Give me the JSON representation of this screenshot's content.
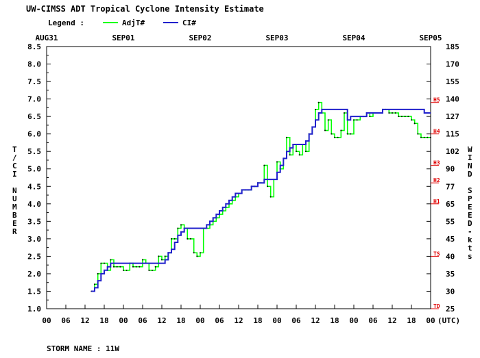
{
  "chart_data": {
    "type": "line",
    "title": "UW-CIMSS ADT Tropical Cyclone Intensity Estimate",
    "legend_label": "Legend :",
    "legend_position": "top-left",
    "series": [
      {
        "name": "AdjT#",
        "color": "#00ff00",
        "x": [
          14,
          15,
          16,
          17,
          18,
          19,
          20,
          21,
          22,
          23,
          24,
          25,
          26,
          27,
          28,
          29,
          30,
          31,
          32,
          33,
          34,
          35,
          36,
          37,
          38,
          39,
          40,
          41,
          42,
          43,
          44,
          45,
          46,
          47,
          48,
          49,
          50,
          51,
          52,
          53,
          54,
          55,
          56,
          57,
          58,
          59,
          60,
          61,
          62,
          63,
          64,
          65,
          66,
          67,
          68,
          69,
          70,
          71,
          72,
          73,
          74,
          75,
          76,
          77,
          78,
          79,
          80,
          81,
          82,
          83,
          84,
          85,
          86,
          87,
          88,
          89,
          90,
          91,
          92,
          93,
          94,
          95,
          96,
          97,
          98,
          99,
          100,
          101,
          102,
          103,
          104,
          105,
          106,
          107,
          108,
          109,
          110,
          111,
          112,
          113,
          114,
          115,
          116,
          117,
          118,
          119,
          120
        ],
        "values": [
          1.5,
          1.7,
          2.0,
          2.3,
          2.3,
          2.1,
          2.4,
          2.2,
          2.2,
          2.2,
          2.1,
          2.1,
          2.3,
          2.2,
          2.2,
          2.2,
          2.4,
          2.3,
          2.1,
          2.1,
          2.2,
          2.5,
          2.4,
          2.5,
          2.6,
          3.0,
          3.0,
          3.3,
          3.4,
          3.3,
          3.0,
          3.0,
          2.6,
          2.5,
          2.6,
          3.3,
          3.3,
          3.4,
          3.5,
          3.6,
          3.7,
          3.8,
          3.9,
          4.0,
          4.1,
          4.2,
          4.3,
          4.4,
          4.4,
          4.4,
          4.5,
          4.5,
          4.6,
          4.6,
          5.1,
          4.5,
          4.2,
          4.7,
          5.2,
          5.0,
          5.3,
          5.9,
          5.4,
          5.7,
          5.5,
          5.4,
          5.7,
          5.5,
          6.0,
          6.2,
          6.7,
          6.9,
          6.6,
          6.1,
          6.4,
          6.0,
          5.9,
          5.9,
          6.1,
          6.6,
          6.0,
          6.0,
          6.4,
          6.4,
          6.5,
          6.5,
          6.6,
          6.5,
          6.6,
          6.6,
          6.6,
          6.7,
          6.7,
          6.6,
          6.6,
          6.6,
          6.5,
          6.5,
          6.5,
          6.5,
          6.4,
          6.3,
          6.0,
          5.9,
          5.9,
          5.9,
          5.9
        ]
      },
      {
        "name": "CI#",
        "color": "#2020cc",
        "x": [
          14,
          15,
          16,
          17,
          18,
          19,
          20,
          21,
          22,
          23,
          24,
          25,
          26,
          27,
          28,
          29,
          30,
          31,
          32,
          33,
          34,
          35,
          36,
          37,
          38,
          39,
          40,
          41,
          42,
          43,
          44,
          45,
          46,
          47,
          48,
          49,
          50,
          51,
          52,
          53,
          54,
          55,
          56,
          57,
          58,
          59,
          60,
          61,
          62,
          63,
          64,
          65,
          66,
          67,
          68,
          69,
          70,
          71,
          72,
          73,
          74,
          75,
          76,
          77,
          78,
          79,
          80,
          81,
          82,
          83,
          84,
          85,
          86,
          87,
          88,
          89,
          90,
          91,
          92,
          93,
          94,
          95,
          96,
          97,
          98,
          99,
          100,
          101,
          102,
          103,
          104,
          105,
          106,
          107,
          108,
          109,
          110,
          111,
          112,
          113,
          114,
          115,
          116,
          117,
          118,
          119,
          120
        ],
        "values": [
          1.5,
          1.6,
          1.8,
          2.0,
          2.1,
          2.2,
          2.3,
          2.3,
          2.3,
          2.3,
          2.3,
          2.3,
          2.3,
          2.3,
          2.3,
          2.3,
          2.3,
          2.3,
          2.3,
          2.3,
          2.3,
          2.3,
          2.3,
          2.4,
          2.6,
          2.7,
          2.9,
          3.1,
          3.2,
          3.3,
          3.3,
          3.3,
          3.3,
          3.3,
          3.3,
          3.3,
          3.4,
          3.5,
          3.6,
          3.7,
          3.8,
          3.9,
          4.0,
          4.1,
          4.2,
          4.3,
          4.3,
          4.4,
          4.4,
          4.4,
          4.5,
          4.5,
          4.6,
          4.6,
          4.7,
          4.7,
          4.7,
          4.7,
          4.9,
          5.1,
          5.3,
          5.5,
          5.6,
          5.7,
          5.7,
          5.7,
          5.7,
          5.8,
          6.0,
          6.2,
          6.4,
          6.6,
          6.7,
          6.7,
          6.7,
          6.7,
          6.7,
          6.7,
          6.7,
          6.7,
          6.4,
          6.5,
          6.5,
          6.5,
          6.5,
          6.5,
          6.6,
          6.6,
          6.6,
          6.6,
          6.6,
          6.7,
          6.7,
          6.7,
          6.7,
          6.7,
          6.7,
          6.7,
          6.7,
          6.7,
          6.7,
          6.7,
          6.7,
          6.7,
          6.6,
          6.6,
          6.6
        ]
      }
    ],
    "date_labels": [
      {
        "label": "AUG31",
        "hour": 0
      },
      {
        "label": "SEP01",
        "hour": 24
      },
      {
        "label": "SEP02",
        "hour": 48
      },
      {
        "label": "SEP03",
        "hour": 72
      },
      {
        "label": "SEP04",
        "hour": 96
      },
      {
        "label": "SEP05",
        "hour": 120
      }
    ],
    "x_tick_labels": [
      "00",
      "06",
      "12",
      "18",
      "00",
      "06",
      "12",
      "18",
      "00",
      "06",
      "12",
      "18",
      "00",
      "06",
      "12",
      "18",
      "00",
      "06",
      "12",
      "18",
      "00"
    ],
    "x_unit_label": "(UTC)",
    "xlim": [
      0,
      120
    ],
    "ylim": [
      1.0,
      8.5
    ],
    "y_ticks": [
      "1.0",
      "1.5",
      "2.0",
      "2.5",
      "3.0",
      "3.5",
      "4.0",
      "4.5",
      "5.0",
      "5.5",
      "6.0",
      "6.5",
      "7.0",
      "7.5",
      "8.0",
      "8.5"
    ],
    "ylabel_left": "T/CI NUMBER",
    "ylabel_right": "WIND SPEED-kts",
    "right_ticks": [
      "25",
      "25",
      "30",
      "35",
      "40",
      "45",
      "55",
      "65",
      "77",
      "90",
      "102",
      "115",
      "127",
      "140",
      "155",
      "170",
      "185"
    ],
    "category_markers": [
      {
        "label": "TD",
        "ci": 1.0
      },
      {
        "label": "TS",
        "ci": 2.5
      },
      {
        "label": "H1",
        "ci": 4.0
      },
      {
        "label": "H2",
        "ci": 4.6
      },
      {
        "label": "H3",
        "ci": 5.1
      },
      {
        "label": "H4",
        "ci": 6.0
      },
      {
        "label": "H5",
        "ci": 6.9
      }
    ],
    "grid": false,
    "footer": "STORM NAME : 11W"
  }
}
